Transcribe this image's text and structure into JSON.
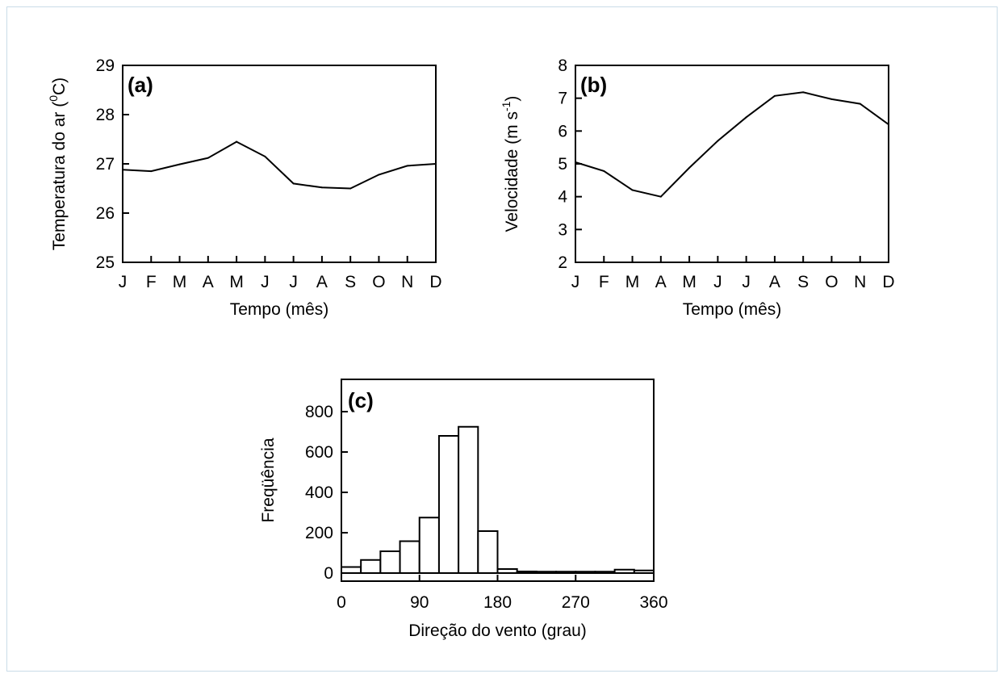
{
  "chart_data": [
    {
      "type": "line",
      "panel_label": "(a)",
      "categories": [
        "J",
        "F",
        "M",
        "A",
        "M",
        "J",
        "J",
        "A",
        "S",
        "O",
        "N",
        "D"
      ],
      "values": [
        26.88,
        26.85,
        26.99,
        27.12,
        27.45,
        27.15,
        26.6,
        26.52,
        26.5,
        26.78,
        26.96,
        27.0
      ],
      "xlabel": "Tempo (mês)",
      "ylabel": "Temperatura do ar (°C)",
      "ylabel_parts": {
        "main": "Temperatura do ar (",
        "sup": "0",
        "unit": "C)"
      },
      "ylim": [
        25,
        29
      ],
      "yticks": [
        25,
        26,
        27,
        28,
        29
      ],
      "grid": false
    },
    {
      "type": "line",
      "panel_label": "(b)",
      "categories": [
        "J",
        "F",
        "M",
        "A",
        "M",
        "J",
        "J",
        "A",
        "S",
        "O",
        "N",
        "D"
      ],
      "values": [
        5.05,
        4.78,
        4.2,
        4.0,
        4.88,
        5.7,
        6.42,
        7.07,
        7.18,
        6.97,
        6.83,
        6.2
      ],
      "xlabel": "Tempo (mês)",
      "ylabel": "Velocidade (m s-1)",
      "ylabel_parts": {
        "main": "Velocidade (m s",
        "sup": "-1",
        "unit": ")"
      },
      "ylim": [
        2,
        8
      ],
      "yticks": [
        2,
        3,
        4,
        5,
        6,
        7,
        8
      ],
      "grid": false
    },
    {
      "type": "bar",
      "subtype": "histogram",
      "panel_label": "(c)",
      "bin_edges": [
        0,
        22.5,
        45,
        67.5,
        90,
        112.5,
        135,
        157.5,
        180,
        202.5,
        225,
        247.5,
        270,
        292.5,
        315,
        337.5,
        360
      ],
      "values": [
        30,
        65,
        108,
        158,
        275,
        680,
        725,
        208,
        20,
        8,
        7,
        7,
        7,
        7,
        17,
        13
      ],
      "xlabel": "Direção do vento (grau)",
      "ylabel": "Freqüência",
      "xlim": [
        0,
        360
      ],
      "xticks": [
        0,
        90,
        180,
        270,
        360
      ],
      "ylim": [
        -40,
        960
      ],
      "yticks": [
        0,
        200,
        400,
        600,
        800
      ],
      "grid": false
    }
  ]
}
